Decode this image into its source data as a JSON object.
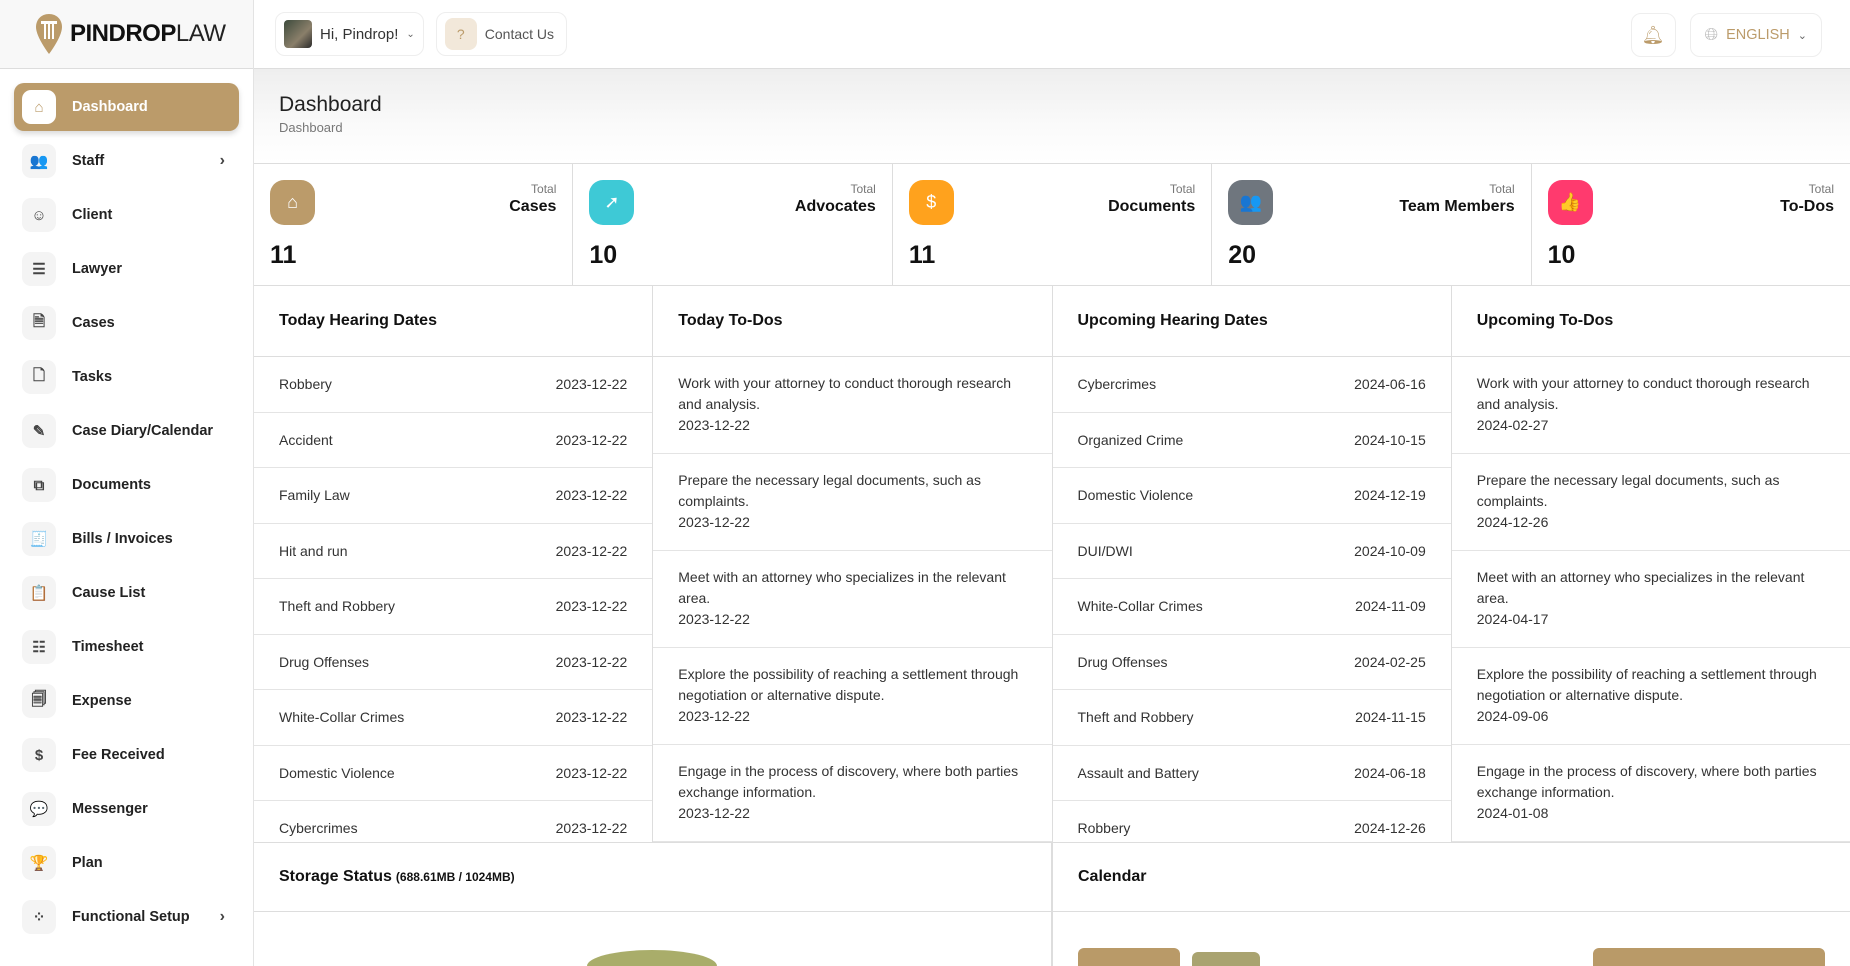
{
  "brand": {
    "bold": "PINDROP",
    "light": "LAW"
  },
  "topbar": {
    "greeting": "Hi, Pindrop!",
    "contact": "Contact Us",
    "language": "ENGLISH"
  },
  "sidebar": {
    "items": [
      {
        "label": "Dashboard",
        "icon": "home-icon",
        "glyph": "⌂",
        "active": true
      },
      {
        "label": "Staff",
        "icon": "users-icon",
        "glyph": "👥",
        "chevron": true
      },
      {
        "label": "Client",
        "icon": "user-check-icon",
        "glyph": "☺"
      },
      {
        "label": "Lawyer",
        "icon": "list-check-icon",
        "glyph": "☰"
      },
      {
        "label": "Cases",
        "icon": "file-icon",
        "glyph": "🗎"
      },
      {
        "label": "Tasks",
        "icon": "file-plus-icon",
        "glyph": "🗋"
      },
      {
        "label": "Case Diary/Calendar",
        "icon": "diary-icon",
        "glyph": "✎"
      },
      {
        "label": "Documents",
        "icon": "copy-icon",
        "glyph": "⧉"
      },
      {
        "label": "Bills / Invoices",
        "icon": "invoice-icon",
        "glyph": "🧾"
      },
      {
        "label": "Cause List",
        "icon": "clipboard-icon",
        "glyph": "📋"
      },
      {
        "label": "Timesheet",
        "icon": "checklist-icon",
        "glyph": "☷"
      },
      {
        "label": "Expense",
        "icon": "receipt-icon",
        "glyph": "🗐"
      },
      {
        "label": "Fee Received",
        "icon": "dollar-file-icon",
        "glyph": "$"
      },
      {
        "label": "Messenger",
        "icon": "chat-icon",
        "glyph": "💬"
      },
      {
        "label": "Plan",
        "icon": "trophy-icon",
        "glyph": "🏆"
      },
      {
        "label": "Functional Setup",
        "icon": "loader-icon",
        "glyph": "⁘",
        "chevron": true
      }
    ]
  },
  "page": {
    "title": "Dashboard",
    "breadcrumb": "Dashboard"
  },
  "stats": [
    {
      "prefix": "Total",
      "label": "Cases",
      "value": "11",
      "color": "#bb9b6a",
      "icon": "home-icon",
      "glyph": "⌂"
    },
    {
      "prefix": "Total",
      "label": "Advocates",
      "value": "10",
      "color": "#3ec9d6",
      "icon": "cursor-click-icon",
      "glyph": "➚"
    },
    {
      "prefix": "Total",
      "label": "Documents",
      "value": "11",
      "color": "#ffa21d",
      "icon": "clipboard-dollar-icon",
      "glyph": "$"
    },
    {
      "prefix": "Total",
      "label": "Team Members",
      "value": "20",
      "color": "#6f767e",
      "icon": "users-icon",
      "glyph": "👥"
    },
    {
      "prefix": "Total",
      "label": "To-Dos",
      "value": "10",
      "color": "#ff3a6e",
      "icon": "thumb-up-icon",
      "glyph": "👍"
    }
  ],
  "today_hearings": {
    "title": "Today Hearing Dates",
    "rows": [
      {
        "name": "Robbery",
        "date": "2023-12-22"
      },
      {
        "name": "Accident",
        "date": "2023-12-22"
      },
      {
        "name": "Family Law",
        "date": "2023-12-22"
      },
      {
        "name": "Hit and run",
        "date": "2023-12-22"
      },
      {
        "name": "Theft and Robbery",
        "date": "2023-12-22"
      },
      {
        "name": "Drug Offenses",
        "date": "2023-12-22"
      },
      {
        "name": "White-Collar Crimes",
        "date": "2023-12-22"
      },
      {
        "name": "Domestic Violence",
        "date": "2023-12-22"
      },
      {
        "name": "Cybercrimes",
        "date": "2023-12-22"
      }
    ]
  },
  "today_todos": {
    "title": "Today To-Dos",
    "rows": [
      {
        "text": "Work with your attorney to conduct thorough research and analysis.",
        "date": "2023-12-22"
      },
      {
        "text": "Prepare the necessary legal documents, such as complaints.",
        "date": "2023-12-22"
      },
      {
        "text": "Meet with an attorney who specializes in the relevant area.",
        "date": "2023-12-22"
      },
      {
        "text": "Explore the possibility of reaching a settlement through negotiation or alternative dispute.",
        "date": "2023-12-22"
      },
      {
        "text": "Engage in the process of discovery, where both parties exchange information.",
        "date": "2023-12-22"
      }
    ]
  },
  "upcoming_hearings": {
    "title": "Upcoming Hearing Dates",
    "rows": [
      {
        "name": "Cybercrimes",
        "date": "2024-06-16"
      },
      {
        "name": "Organized Crime",
        "date": "2024-10-15"
      },
      {
        "name": "Domestic Violence",
        "date": "2024-12-19"
      },
      {
        "name": "DUI/DWI",
        "date": "2024-10-09"
      },
      {
        "name": "White-Collar Crimes",
        "date": "2024-11-09"
      },
      {
        "name": "Drug Offenses",
        "date": "2024-02-25"
      },
      {
        "name": "Theft and Robbery",
        "date": "2024-11-15"
      },
      {
        "name": "Assault and Battery",
        "date": "2024-06-18"
      },
      {
        "name": "Robbery",
        "date": "2024-12-26"
      }
    ]
  },
  "upcoming_todos": {
    "title": "Upcoming To-Dos",
    "rows": [
      {
        "text": "Work with your attorney to conduct thorough research and analysis.",
        "date": "2024-02-27"
      },
      {
        "text": "Prepare the necessary legal documents, such as complaints.",
        "date": "2024-12-26"
      },
      {
        "text": "Meet with an attorney who specializes in the relevant area.",
        "date": "2024-04-17"
      },
      {
        "text": "Explore the possibility of reaching a settlement through negotiation or alternative dispute.",
        "date": "2024-09-06"
      },
      {
        "text": "Engage in the process of discovery, where both parties exchange information.",
        "date": "2024-01-08"
      }
    ]
  },
  "storage": {
    "title": "Storage Status",
    "usage": "(688.61MB / 1024MB)",
    "used_mb": 688.61,
    "total_mb": 1024,
    "color": "#a9ad6a"
  },
  "calendar": {
    "title": "Calendar"
  },
  "colors": {
    "accent": "#bb9b6a"
  }
}
